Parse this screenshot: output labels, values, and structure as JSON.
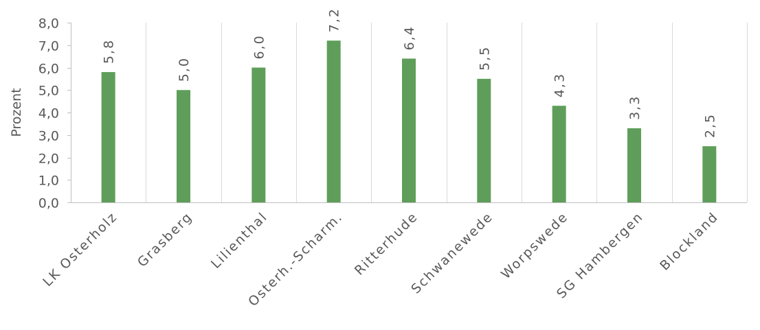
{
  "chart_data": {
    "type": "bar",
    "categories": [
      "LK Osterholz",
      "Grasberg",
      "Lilienthal",
      "Osterh.-Scharm.",
      "Ritterhude",
      "Schwanewede",
      "Worpswede",
      "SG Hambergen",
      "Blockland"
    ],
    "values": [
      5.8,
      5.0,
      6.0,
      7.2,
      6.4,
      5.5,
      4.3,
      3.3,
      2.5
    ],
    "data_labels": [
      "5,8",
      "5,0",
      "6,0",
      "7,2",
      "6,4",
      "5,5",
      "4,3",
      "3,3",
      "2,5"
    ],
    "ylabel": "Prozent",
    "xlabel": "",
    "ylim": [
      0,
      8
    ],
    "yticks": [
      "0,0",
      "1,0",
      "2,0",
      "3,0",
      "4,0",
      "5,0",
      "6,0",
      "7,0",
      "8,0"
    ],
    "grid": "vertical separators between categories",
    "legend": "none",
    "colors": {
      "bar": "#5f9e5a",
      "grid": "#d9d9d9",
      "axis": "#bfbfbf",
      "text": "#595959"
    }
  }
}
